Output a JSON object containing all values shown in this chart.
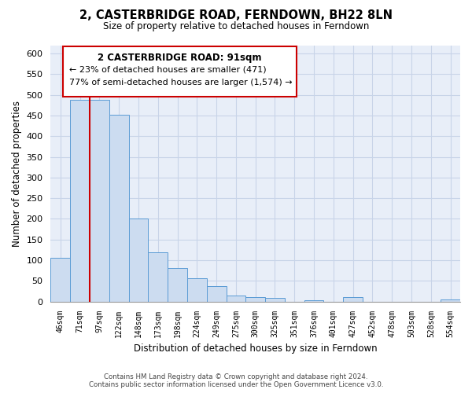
{
  "title": "2, CASTERBRIDGE ROAD, FERNDOWN, BH22 8LN",
  "subtitle": "Size of property relative to detached houses in Ferndown",
  "xlabel": "Distribution of detached houses by size in Ferndown",
  "ylabel": "Number of detached properties",
  "bar_labels": [
    "46sqm",
    "71sqm",
    "97sqm",
    "122sqm",
    "148sqm",
    "173sqm",
    "198sqm",
    "224sqm",
    "249sqm",
    "275sqm",
    "300sqm",
    "325sqm",
    "351sqm",
    "376sqm",
    "401sqm",
    "427sqm",
    "452sqm",
    "478sqm",
    "503sqm",
    "528sqm",
    "554sqm"
  ],
  "bar_values": [
    105,
    487,
    487,
    452,
    201,
    120,
    82,
    57,
    37,
    14,
    10,
    8,
    0,
    4,
    0,
    10,
    0,
    0,
    0,
    0,
    5
  ],
  "bar_color": "#ccdcf0",
  "bar_edge_color": "#5b9bd5",
  "vline_x_index": 2,
  "vline_color": "#cc0000",
  "annotation_text_line1": "2 CASTERBRIDGE ROAD: 91sqm",
  "annotation_text_line2": "← 23% of detached houses are smaller (471)",
  "annotation_text_line3": "77% of semi-detached houses are larger (1,574) →",
  "ylim": [
    0,
    620
  ],
  "yticks": [
    0,
    50,
    100,
    150,
    200,
    250,
    300,
    350,
    400,
    450,
    500,
    550,
    600
  ],
  "footnote1": "Contains HM Land Registry data © Crown copyright and database right 2024.",
  "footnote2": "Contains public sector information licensed under the Open Government Licence v3.0.",
  "grid_color": "#c8d4e8",
  "bg_color": "#ffffff",
  "plot_bg_color": "#e8eef8"
}
